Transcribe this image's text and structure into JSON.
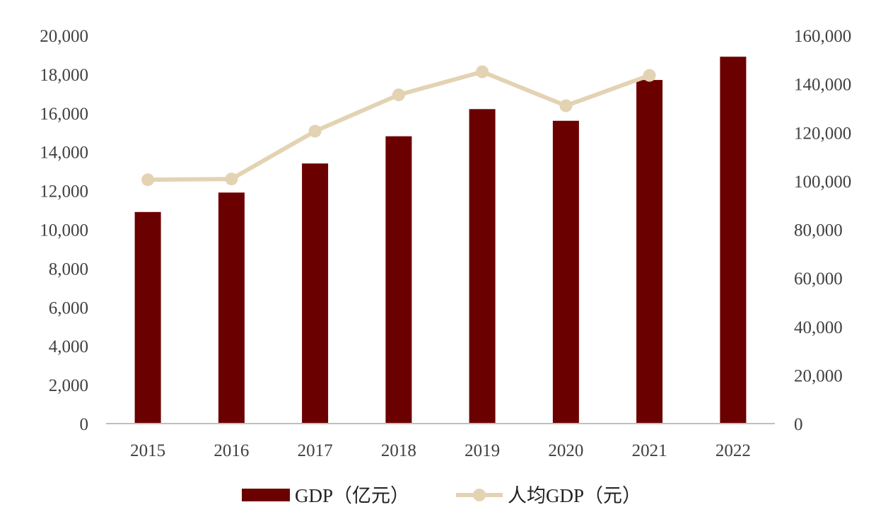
{
  "chart_data": {
    "type": "bar",
    "categories": [
      "2015",
      "2016",
      "2017",
      "2018",
      "2019",
      "2020",
      "2021",
      "2022"
    ],
    "series": [
      {
        "name": "GDP（亿元）",
        "type": "bar",
        "axis": "left",
        "color": "#6b0000",
        "values": [
          10900,
          11900,
          13400,
          14800,
          16200,
          15600,
          17700,
          18900
        ]
      },
      {
        "name": "人均GDP（元）",
        "type": "line",
        "axis": "right",
        "color": "#e3d3b3",
        "values": [
          100500,
          100800,
          120500,
          135500,
          145000,
          131000,
          143500,
          null
        ]
      }
    ],
    "y_left": {
      "min": 0,
      "max": 20000,
      "ticks": [
        "0",
        "2,000",
        "4,000",
        "6,000",
        "8,000",
        "10,000",
        "12,000",
        "14,000",
        "16,000",
        "18,000",
        "20,000"
      ]
    },
    "y_right": {
      "min": 0,
      "max": 160000,
      "ticks": [
        "0",
        "20,000",
        "40,000",
        "60,000",
        "80,000",
        "100,000",
        "120,000",
        "140,000",
        "160,000"
      ]
    },
    "grid": false,
    "legend_position": "bottom"
  }
}
